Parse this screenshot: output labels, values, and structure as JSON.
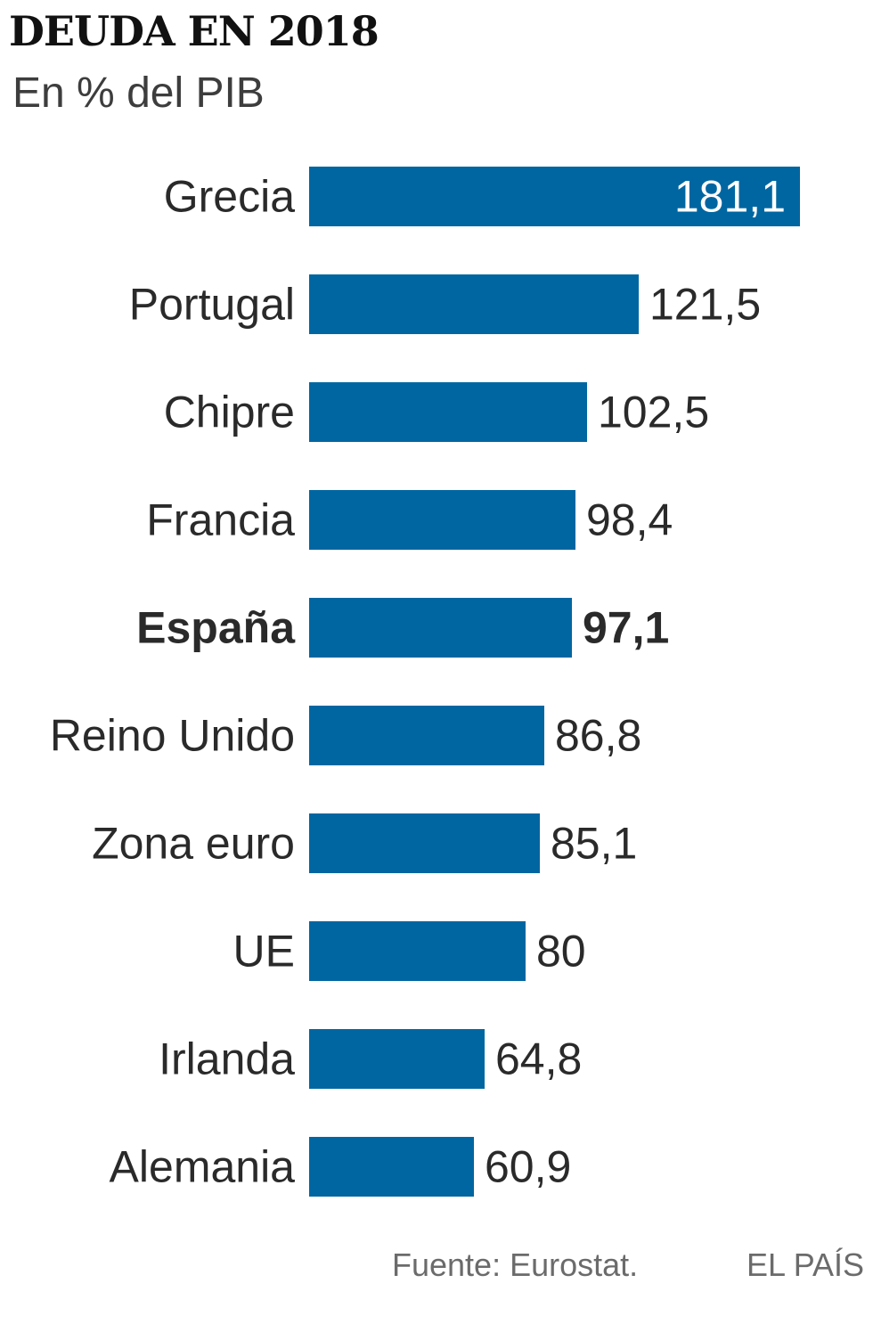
{
  "title": "DEUDA EN 2018",
  "subtitle": "En % del PIB",
  "source": "Fuente: Eurostat.",
  "brand": "EL PAÍS",
  "colors": {
    "bar": "#0066a1",
    "label": "#2a2a2a",
    "value_outside": "#2a2a2a",
    "value_inside": "#ffffff"
  },
  "chart_data": {
    "type": "bar",
    "orientation": "horizontal",
    "categories": [
      "Grecia",
      "Portugal",
      "Chipre",
      "Francia",
      "España",
      "Reino Unido",
      "Zona euro",
      "UE",
      "Irlanda",
      "Alemania"
    ],
    "values": [
      181.1,
      121.5,
      102.5,
      98.4,
      97.1,
      86.8,
      85.1,
      80,
      64.8,
      60.9
    ],
    "value_labels": [
      "181,1",
      "121,5",
      "102,5",
      "98,4",
      "97,1",
      "86,8",
      "85,1",
      "80",
      "64,8",
      "60,9"
    ],
    "highlight": "España",
    "title": "DEUDA EN 2018",
    "subtitle": "En % del PIB",
    "xlim": [
      0,
      181.1
    ],
    "grid": false,
    "legend": "none"
  }
}
